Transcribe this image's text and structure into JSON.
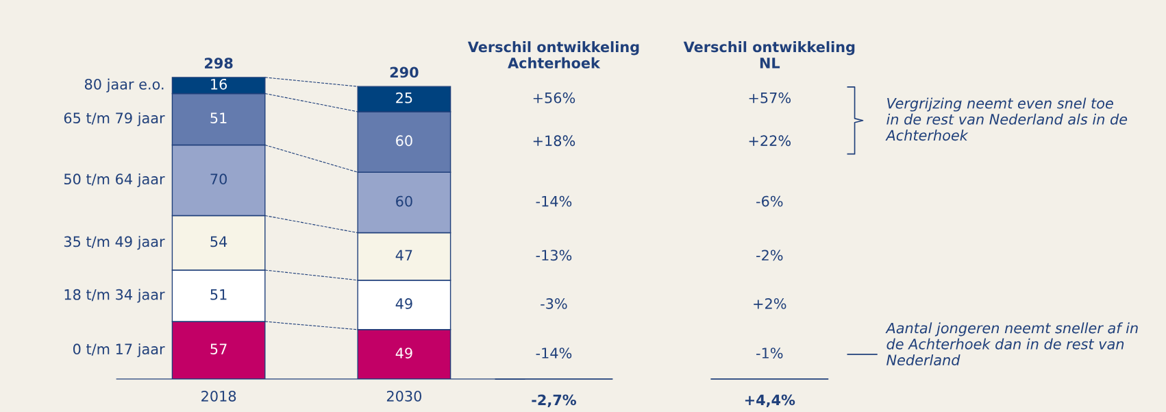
{
  "chart_data": {
    "type": "bar",
    "stacked": true,
    "categories": [
      "2018",
      "2030"
    ],
    "series": [
      {
        "name": "0 t/m 17 jaar",
        "color": "#c20066",
        "values": [
          57,
          49
        ]
      },
      {
        "name": "18 t/m 34 jaar",
        "color": "#ffffff",
        "values": [
          51,
          49
        ]
      },
      {
        "name": "35 t/m 49 jaar",
        "color": "#f7f4e7",
        "values": [
          54,
          47
        ]
      },
      {
        "name": "50 t/m 64 jaar",
        "color": "#97a5cb",
        "values": [
          70,
          60
        ]
      },
      {
        "name": "65 t/m 79 jaar",
        "color": "#647bae",
        "values": [
          51,
          60
        ]
      },
      {
        "name": "80 jaar e.o.",
        "color": "#00427f",
        "values": [
          16,
          25
        ]
      }
    ],
    "data_labels": true,
    "totals": [
      "298",
      "290"
    ],
    "legend": false,
    "annotations": [
      "Verschil ontwikkeling\nAchterhoek",
      "Verschil ontwikkeling\nNL",
      "-14%",
      "-3%",
      "-13%",
      "-14%",
      "+18%",
      "+56%",
      "-1%",
      "+2%",
      "-2%",
      "-6%",
      "+22%",
      "+57%",
      "-2,7%",
      "+4,4%",
      "Vergrijzing neemt even snel toe\nin de rest van Nederland als in de\nAchterhoek",
      "Aantal jongeren neemt sneller af in\nde Achterhoek dan in de rest van\nNederland"
    ]
  }
}
